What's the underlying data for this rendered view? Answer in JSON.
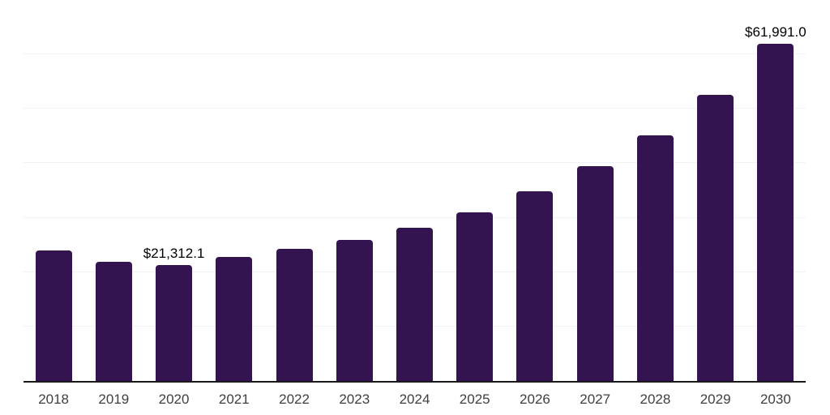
{
  "chart_data": {
    "type": "bar",
    "title": "",
    "xlabel": "",
    "ylabel": "",
    "categories": [
      "2018",
      "2019",
      "2020",
      "2021",
      "2022",
      "2023",
      "2024",
      "2025",
      "2026",
      "2027",
      "2028",
      "2029",
      "2030"
    ],
    "values": [
      24000,
      21900,
      21312.1,
      22800,
      24300,
      25900,
      28200,
      31000,
      34900,
      39500,
      45100,
      52600,
      61991.0
    ],
    "data_labels": [
      {
        "category": "2020",
        "text": "$21,312.1"
      },
      {
        "category": "2030",
        "text": "$61,991.0"
      }
    ],
    "ylim": [
      0,
      70000
    ],
    "grid_step": 10000,
    "grid": true,
    "legend_position": "none",
    "colors": {
      "bar": "#341450",
      "gridline": "#f2f2f2",
      "axis": "#1a1a1a",
      "tick_label": "#3f3f3f",
      "data_label": "#000000",
      "background": "#ffffff"
    }
  }
}
